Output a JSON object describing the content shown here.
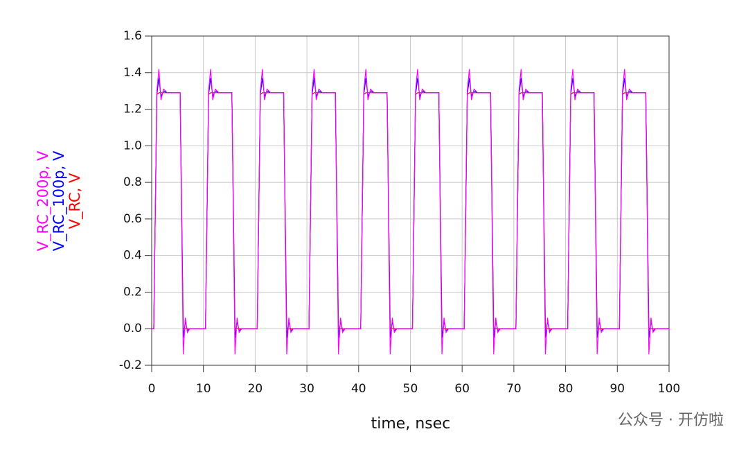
{
  "chart_data": {
    "type": "line",
    "xlabel": "time, nsec",
    "watermark": "公众号 · 开仿啦",
    "x": [
      0,
      0.4,
      1,
      1.4,
      1.8,
      2.3,
      3,
      5.5,
      6.1,
      6.5,
      6.9,
      7.4,
      10,
      10.4,
      11,
      11.4,
      11.8,
      12.3,
      13,
      15.5,
      16.1,
      16.5,
      16.9,
      17.4,
      20,
      20.4,
      21,
      21.4,
      21.8,
      22.3,
      23,
      25.5,
      26.1,
      26.5,
      26.9,
      27.4,
      30,
      30.4,
      31,
      31.4,
      31.8,
      32.3,
      33,
      35.5,
      36.1,
      36.5,
      36.9,
      37.4,
      40,
      40.4,
      41,
      41.4,
      41.8,
      42.3,
      43,
      45.5,
      46.1,
      46.5,
      46.9,
      47.4,
      50,
      50.4,
      51,
      51.4,
      51.8,
      52.3,
      53,
      55.5,
      56.1,
      56.5,
      56.9,
      57.4,
      60,
      60.4,
      61,
      61.4,
      61.8,
      62.3,
      63,
      65.5,
      66.1,
      66.5,
      66.9,
      67.4,
      70,
      70.4,
      71,
      71.4,
      71.8,
      72.3,
      73,
      75.5,
      76.1,
      76.5,
      76.9,
      77.4,
      80,
      80.4,
      81,
      81.4,
      81.8,
      82.3,
      83,
      85.5,
      86.1,
      86.5,
      86.9,
      87.4,
      90,
      90.4,
      91,
      91.4,
      91.8,
      92.3,
      93,
      95.5,
      96.1,
      96.5,
      96.9,
      97.4,
      100
    ],
    "series": [
      {
        "name": "V_RC_200p, V",
        "color": "#ff00ff",
        "values": [
          0,
          0,
          1.3,
          1.42,
          1.25,
          1.31,
          1.29,
          1.29,
          -0.14,
          0.06,
          -0.02,
          0,
          0,
          0,
          1.3,
          1.42,
          1.25,
          1.31,
          1.29,
          1.29,
          -0.14,
          0.06,
          -0.02,
          0,
          0,
          0,
          1.3,
          1.42,
          1.25,
          1.31,
          1.29,
          1.29,
          -0.14,
          0.06,
          -0.02,
          0,
          0,
          0,
          1.3,
          1.42,
          1.25,
          1.31,
          1.29,
          1.29,
          -0.14,
          0.06,
          -0.02,
          0,
          0,
          0,
          1.3,
          1.42,
          1.25,
          1.31,
          1.29,
          1.29,
          -0.14,
          0.06,
          -0.02,
          0,
          0,
          0,
          1.3,
          1.42,
          1.25,
          1.31,
          1.29,
          1.29,
          -0.14,
          0.06,
          -0.02,
          0,
          0,
          0,
          1.3,
          1.42,
          1.25,
          1.31,
          1.29,
          1.29,
          -0.14,
          0.06,
          -0.02,
          0,
          0,
          0,
          1.3,
          1.42,
          1.25,
          1.31,
          1.29,
          1.29,
          -0.14,
          0.06,
          -0.02,
          0,
          0,
          0,
          1.3,
          1.42,
          1.25,
          1.31,
          1.29,
          1.29,
          -0.14,
          0.06,
          -0.02,
          0,
          0,
          0,
          1.3,
          1.42,
          1.25,
          1.31,
          1.29,
          1.29,
          -0.14,
          0.06,
          -0.02,
          0,
          0
        ]
      },
      {
        "name": "V_RC_100p, V",
        "color": "#0000ff",
        "values": [
          0,
          0,
          1.28,
          1.37,
          1.27,
          1.3,
          1.29,
          1.29,
          -0.05,
          0.04,
          -0.01,
          0,
          0,
          0,
          1.28,
          1.37,
          1.27,
          1.3,
          1.29,
          1.29,
          -0.05,
          0.04,
          -0.01,
          0,
          0,
          0,
          1.28,
          1.37,
          1.27,
          1.3,
          1.29,
          1.29,
          -0.05,
          0.04,
          -0.01,
          0,
          0,
          0,
          1.28,
          1.37,
          1.27,
          1.3,
          1.29,
          1.29,
          -0.05,
          0.04,
          -0.01,
          0,
          0,
          0,
          1.28,
          1.37,
          1.27,
          1.3,
          1.29,
          1.29,
          -0.05,
          0.04,
          -0.01,
          0,
          0,
          0,
          1.28,
          1.37,
          1.27,
          1.3,
          1.29,
          1.29,
          -0.05,
          0.04,
          -0.01,
          0,
          0,
          0,
          1.28,
          1.37,
          1.27,
          1.3,
          1.29,
          1.29,
          -0.05,
          0.04,
          -0.01,
          0,
          0,
          0,
          1.28,
          1.37,
          1.27,
          1.3,
          1.29,
          1.29,
          -0.05,
          0.04,
          -0.01,
          0,
          0,
          0,
          1.28,
          1.37,
          1.27,
          1.3,
          1.29,
          1.29,
          -0.05,
          0.04,
          -0.01,
          0,
          0,
          0,
          1.28,
          1.37,
          1.27,
          1.3,
          1.29,
          1.29,
          -0.05,
          0.04,
          -0.01,
          0,
          0
        ]
      },
      {
        "name": "V_RC, V",
        "color": "#ff0000",
        "values": [
          0,
          0,
          1.28,
          1.29,
          1.29,
          1.29,
          1.29,
          1.29,
          0,
          0,
          0,
          0,
          0,
          0,
          1.28,
          1.29,
          1.29,
          1.29,
          1.29,
          1.29,
          0,
          0,
          0,
          0,
          0,
          0,
          1.28,
          1.29,
          1.29,
          1.29,
          1.29,
          1.29,
          0,
          0,
          0,
          0,
          0,
          0,
          1.28,
          1.29,
          1.29,
          1.29,
          1.29,
          1.29,
          0,
          0,
          0,
          0,
          0,
          0,
          1.28,
          1.29,
          1.29,
          1.29,
          1.29,
          1.29,
          0,
          0,
          0,
          0,
          0,
          0,
          1.28,
          1.29,
          1.29,
          1.29,
          1.29,
          1.29,
          0,
          0,
          0,
          0,
          0,
          0,
          1.28,
          1.29,
          1.29,
          1.29,
          1.29,
          1.29,
          0,
          0,
          0,
          0,
          0,
          0,
          1.28,
          1.29,
          1.29,
          1.29,
          1.29,
          1.29,
          0,
          0,
          0,
          0,
          0,
          0,
          1.28,
          1.29,
          1.29,
          1.29,
          1.29,
          1.29,
          0,
          0,
          0,
          0,
          0,
          0,
          1.28,
          1.29,
          1.29,
          1.29,
          1.29,
          1.29,
          0,
          0,
          0,
          0,
          0
        ]
      }
    ],
    "xlim": [
      0,
      100
    ],
    "xticks": [
      0,
      10,
      20,
      30,
      40,
      50,
      60,
      70,
      80,
      90,
      100
    ],
    "ylim": [
      -0.2,
      1.6
    ],
    "yticks": [
      -0.2,
      {
        "value": 0,
        "label": "0.0"
      },
      0.2,
      0.4,
      0.6,
      0.8,
      {
        "value": 1,
        "label": "1.0"
      },
      1.2,
      1.4,
      1.6
    ],
    "grid": true
  }
}
